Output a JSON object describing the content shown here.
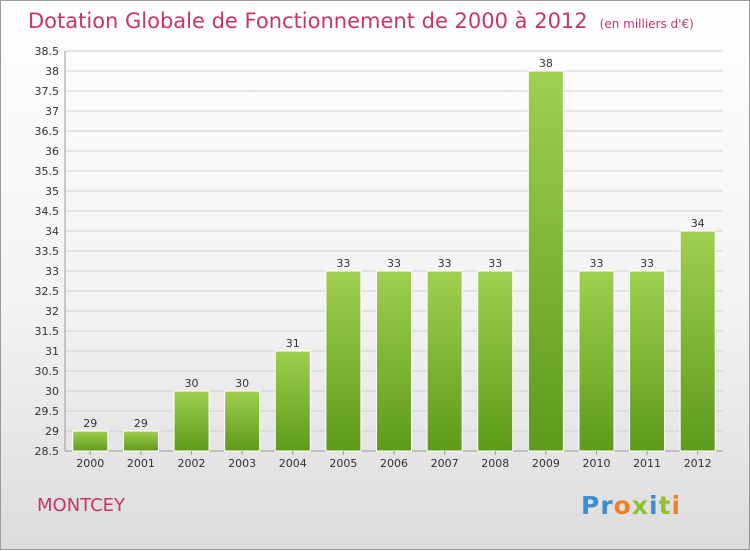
{
  "header": {
    "title": "Dotation Globale de Fonctionnement de 2000 à 2012",
    "subtitle": "(en milliers d'€)"
  },
  "footer": {
    "commune": "MONTCEY",
    "logo": "Proxiti",
    "logo_letters": [
      {
        "ch": "P",
        "color": "#3a8fd0"
      },
      {
        "ch": "r",
        "color": "#3a8fd0"
      },
      {
        "ch": "o",
        "color": "#f08020"
      },
      {
        "ch": "x",
        "color": "#90c030"
      },
      {
        "ch": "i",
        "color": "#3a8fd0"
      },
      {
        "ch": "t",
        "color": "#90c030"
      },
      {
        "ch": "i",
        "color": "#f08020"
      }
    ]
  },
  "colors": {
    "title": "#cc3366",
    "bar_top": "#9fd050",
    "bar_bottom": "#5e9a1a",
    "grid": "#cfcfcf"
  },
  "chart_data": {
    "type": "bar",
    "categories": [
      "2000",
      "2001",
      "2002",
      "2003",
      "2004",
      "2005",
      "2006",
      "2007",
      "2008",
      "2009",
      "2010",
      "2011",
      "2012"
    ],
    "values": [
      29,
      29,
      30,
      30,
      31,
      33,
      33,
      33,
      33,
      38,
      33,
      33,
      34
    ],
    "data_labels": [
      "29",
      "29",
      "30",
      "30",
      "31",
      "33",
      "33",
      "33",
      "33",
      "38",
      "33",
      "33",
      "34"
    ],
    "ylim": [
      28.5,
      38.5
    ],
    "y_ticks": [
      "28.5",
      "29",
      "29.5",
      "30",
      "30.5",
      "31",
      "31.5",
      "32",
      "32.5",
      "33",
      "33.5",
      "34",
      "34.5",
      "35",
      "35.5",
      "36",
      "36.5",
      "37",
      "37.5",
      "38",
      "38.5"
    ],
    "grid": true,
    "xlabel": "",
    "ylabel": ""
  }
}
